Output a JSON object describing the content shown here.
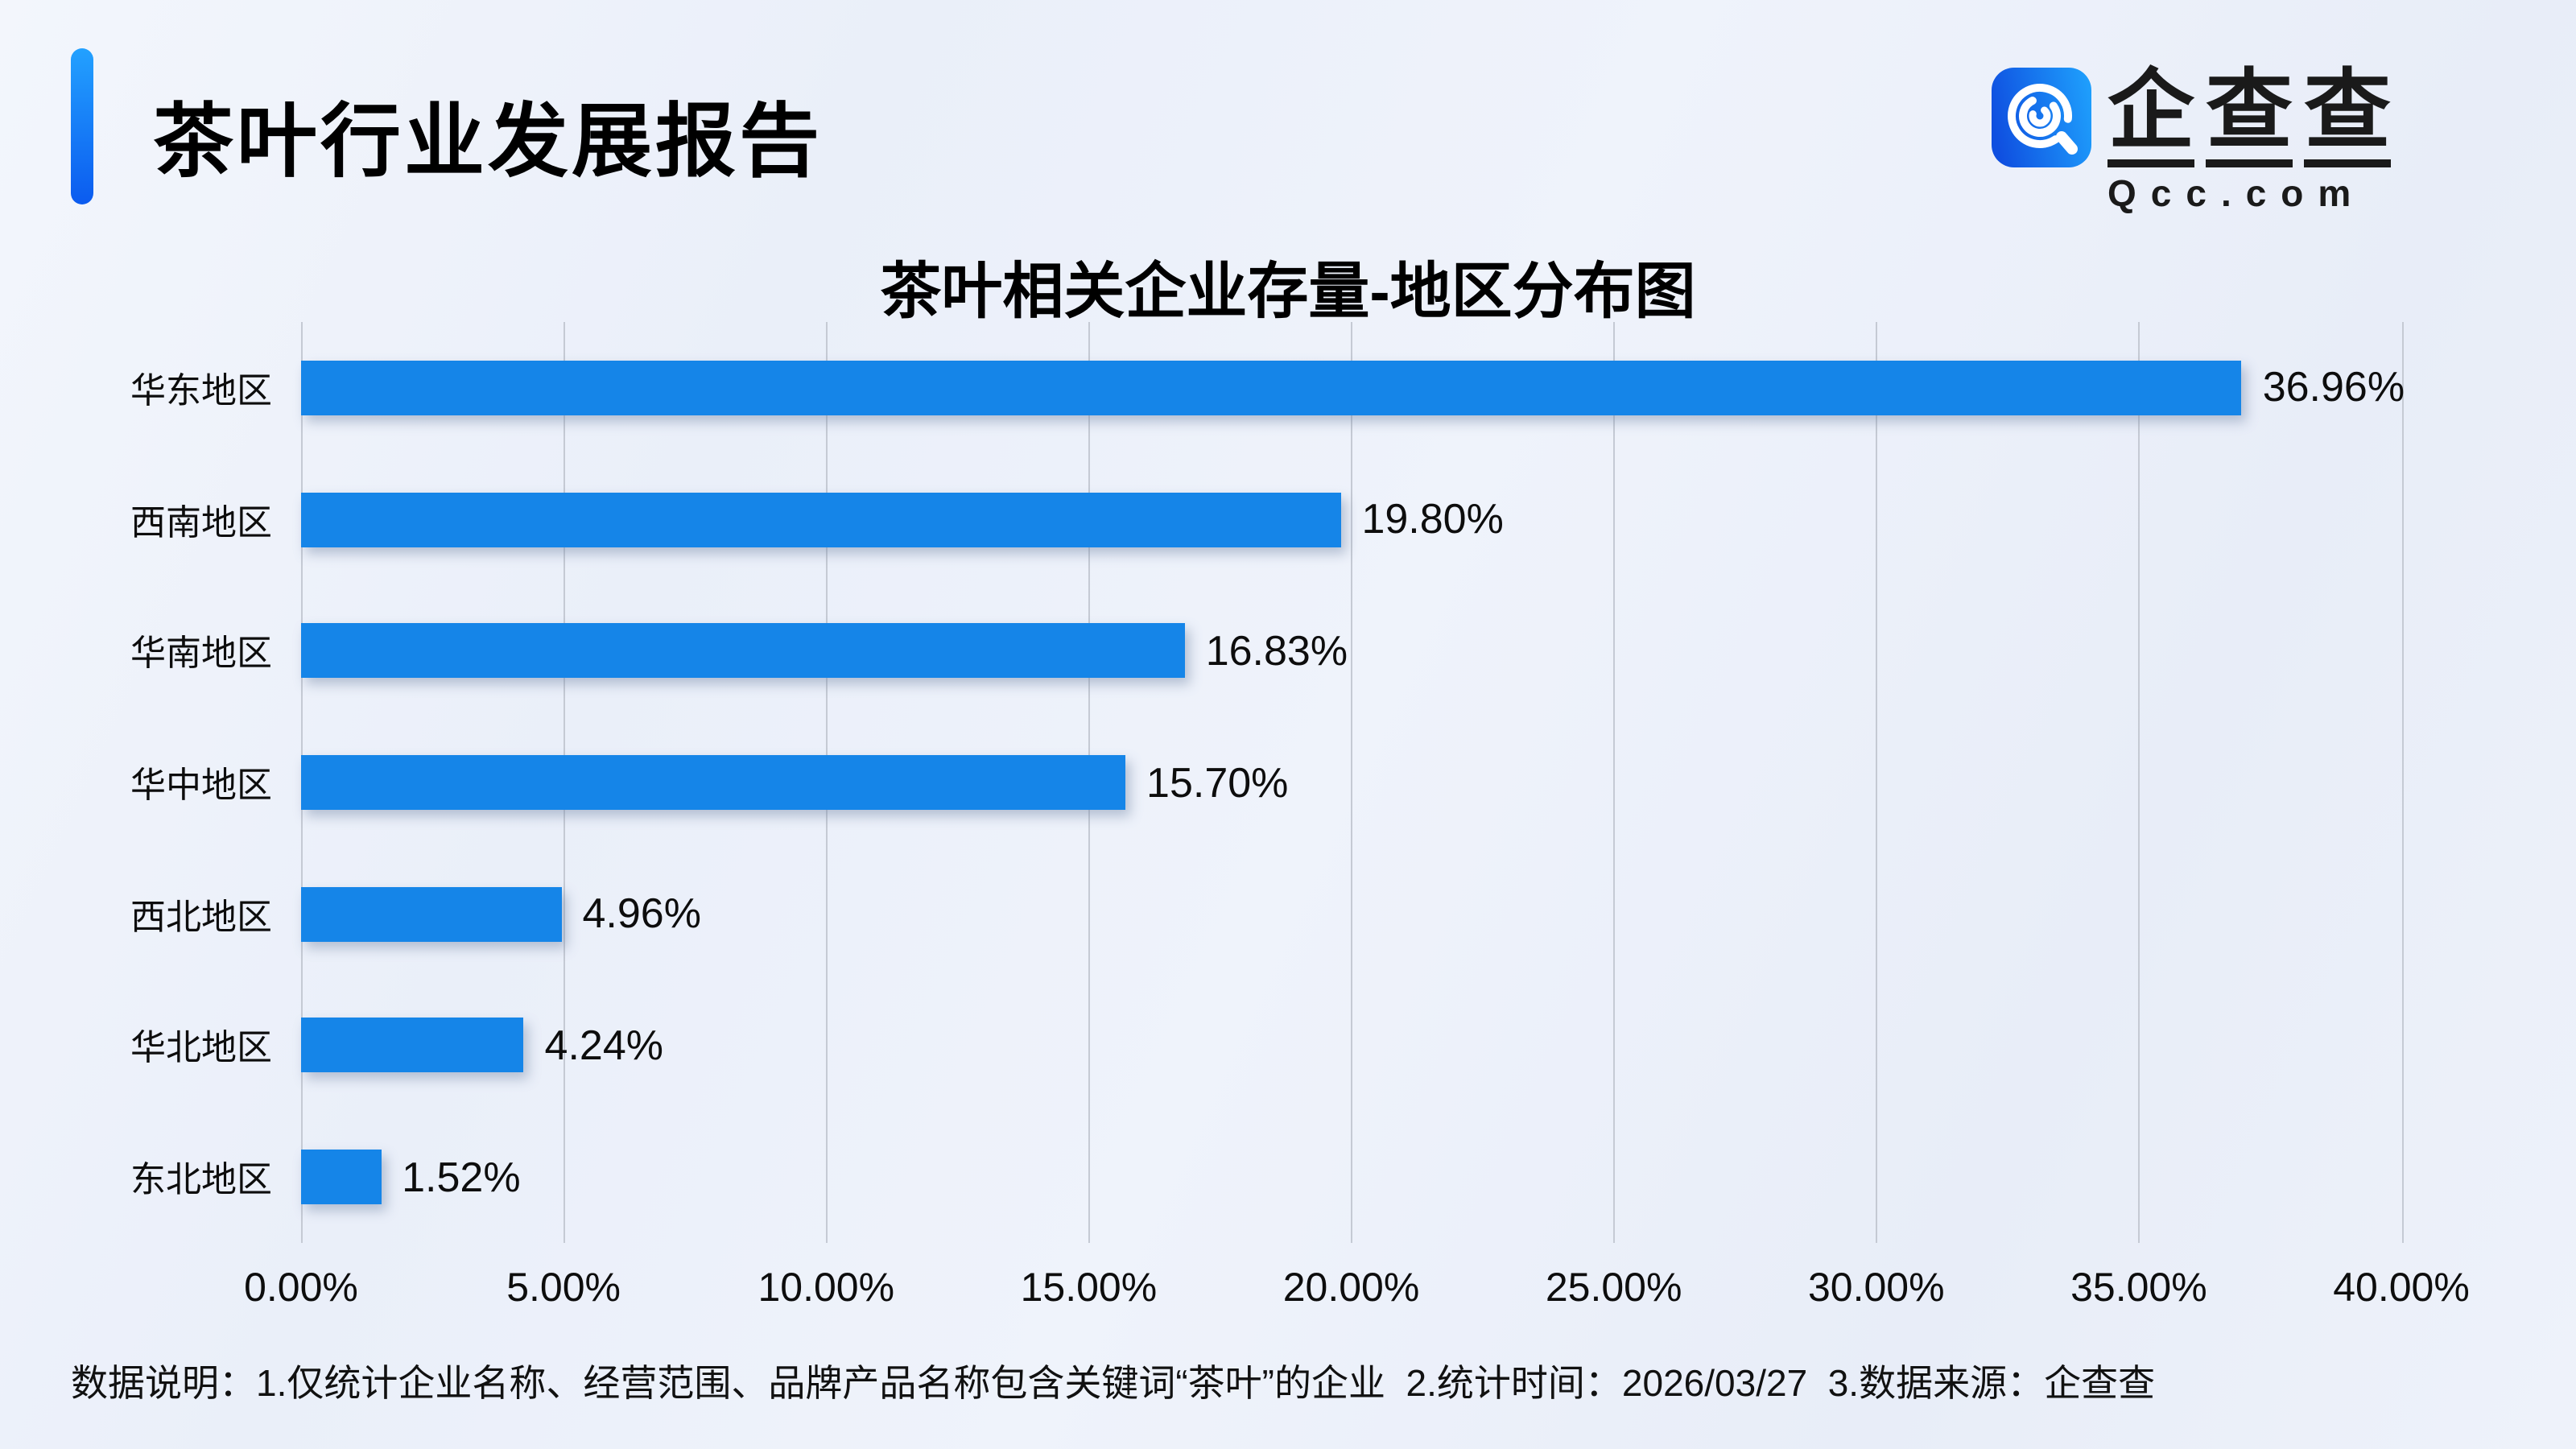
{
  "header": {
    "title": "茶叶行业发展报告"
  },
  "logo": {
    "chars": [
      "企",
      "查",
      "查"
    ],
    "domain": "Qcc.com",
    "icon": "qcc-magnifier-icon",
    "icon_gradient_start": "#0f4fe0",
    "icon_gradient_end": "#1e9efc"
  },
  "chart_data": {
    "type": "bar",
    "orientation": "horizontal",
    "title": "茶叶相关企业存量-地区分布图",
    "categories": [
      "华东地区",
      "西南地区",
      "华南地区",
      "华中地区",
      "西北地区",
      "华北地区",
      "东北地区"
    ],
    "values": [
      36.96,
      19.8,
      16.83,
      15.7,
      4.96,
      4.24,
      1.52
    ],
    "value_labels": [
      "36.96%",
      "19.80%",
      "16.83%",
      "15.70%",
      "4.96%",
      "4.24%",
      "1.52%"
    ],
    "xlabel": "",
    "ylabel": "",
    "xlim": [
      0,
      40
    ],
    "x_ticks": [
      "0.00%",
      "5.00%",
      "10.00%",
      "15.00%",
      "20.00%",
      "25.00%",
      "30.00%",
      "35.00%",
      "40.00%"
    ],
    "grid": true,
    "legend": "none",
    "bar_color": "#1585e8",
    "gridline_color": "#c5cad4"
  },
  "footer": {
    "note": "数据说明：1.仅统计企业名称、经营范围、品牌产品名称包含关键词“茶叶”的企业  2.统计时间：2026/03/27  3.数据来源：企查查"
  }
}
